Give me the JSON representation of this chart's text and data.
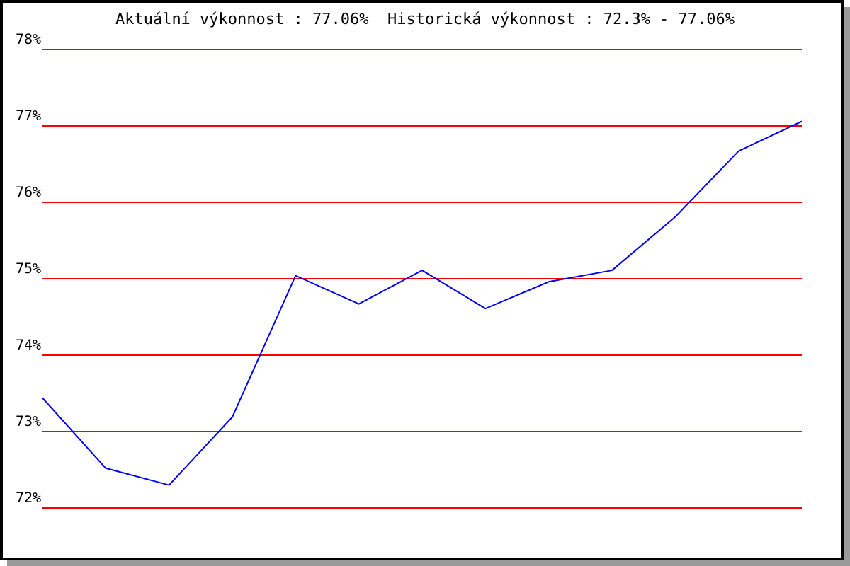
{
  "chart_data": {
    "type": "line",
    "title": "Aktuální výkonnost : 77.06%  Historická výkonnost : 72.3% - 77.06%",
    "categories": [
      null,
      null,
      null,
      null,
      null,
      null,
      null,
      null,
      null,
      null,
      null,
      null,
      null
    ],
    "series": [
      {
        "color": "#0000ff",
        "values": [
          73.44,
          72.52,
          72.3,
          73.19,
          75.04,
          74.67,
          75.11,
          74.61,
          74.96,
          75.11,
          75.81,
          76.67,
          77.06
        ]
      }
    ],
    "ylim": [
      72,
      78
    ],
    "yticks": [
      {
        "value": 72,
        "label": "72%"
      },
      {
        "value": 73,
        "label": "73%"
      },
      {
        "value": 74,
        "label": "74%"
      },
      {
        "value": 75,
        "label": "75%"
      },
      {
        "value": 76,
        "label": "76%"
      },
      {
        "value": 77,
        "label": "77%"
      },
      {
        "value": 78,
        "label": "78%"
      }
    ],
    "grid": "y"
  }
}
